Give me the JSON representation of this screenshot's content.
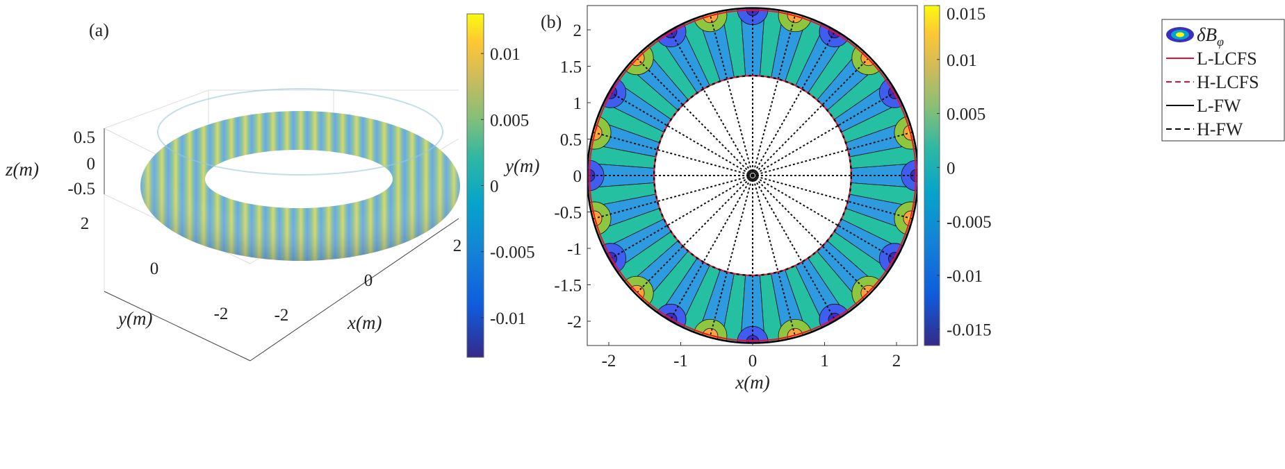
{
  "chart_data": [
    {
      "type": "surface3d",
      "panel_label": "(a)",
      "title": "",
      "xlabel": "x(m)",
      "ylabel": "y(m)",
      "zlabel": "z(m)",
      "x_ticks": [
        "-2",
        "0",
        "2"
      ],
      "y_ticks": [
        "2",
        "0",
        "-2"
      ],
      "z_ticks": [
        "0.5",
        "0",
        "-0.5"
      ],
      "colorbar": {
        "label": "y(m)",
        "ticks": [
          "0.01",
          "0.005",
          "0",
          "-0.005",
          "-0.01"
        ],
        "tick_values": [
          0.01,
          0.005,
          0,
          -0.005,
          -0.01
        ],
        "range": [
          -0.013,
          0.013
        ]
      },
      "surface": "torus colored by perturbation field, major radius ~1.85 m, minor radius ~0.5 m, 12 toroidal periods"
    },
    {
      "type": "contour",
      "panel_label": "(b)",
      "xlabel": "x(m)",
      "ylabel": "",
      "xlim": [
        -2.3,
        2.3
      ],
      "ylim": [
        -2.33,
        2.33
      ],
      "x_ticks": [
        -2,
        -1,
        0,
        1,
        2
      ],
      "x_tick_labels": [
        "-2",
        "-1",
        "0",
        "1",
        "2"
      ],
      "y_ticks": [
        2,
        1.5,
        1,
        0.5,
        0,
        -0.5,
        -1,
        -1.5,
        -2
      ],
      "y_tick_labels": [
        "2",
        "1.5",
        "1",
        "0.5",
        "0",
        "-0.5",
        "-1",
        "-1.5",
        "-2"
      ],
      "inner_radius": 1.37,
      "outer_radius": 2.3,
      "toroidal_periods": 12,
      "spokes": 24,
      "colorbar": {
        "ticks": [
          "0.015",
          "0.01",
          "0.005",
          "0",
          "-0.005",
          "-0.01",
          "-0.015"
        ],
        "tick_values": [
          0.015,
          0.01,
          0.005,
          0,
          -0.005,
          -0.01,
          -0.015
        ],
        "range": [
          -0.0165,
          0.015
        ]
      },
      "legend": {
        "placement": "outside-right-top",
        "entries": [
          {
            "label": "δB",
            "subscript": "φ",
            "style": "contour"
          },
          {
            "label": "L-LCFS",
            "color": "#e8112d",
            "dash": "solid"
          },
          {
            "label": "H-LCFS",
            "color": "#e8112d",
            "dash": "dashed"
          },
          {
            "label": "L-FW",
            "color": "#000000",
            "dash": "solid"
          },
          {
            "label": "H-FW",
            "color": "#000000",
            "dash": "dashed"
          }
        ]
      }
    }
  ]
}
